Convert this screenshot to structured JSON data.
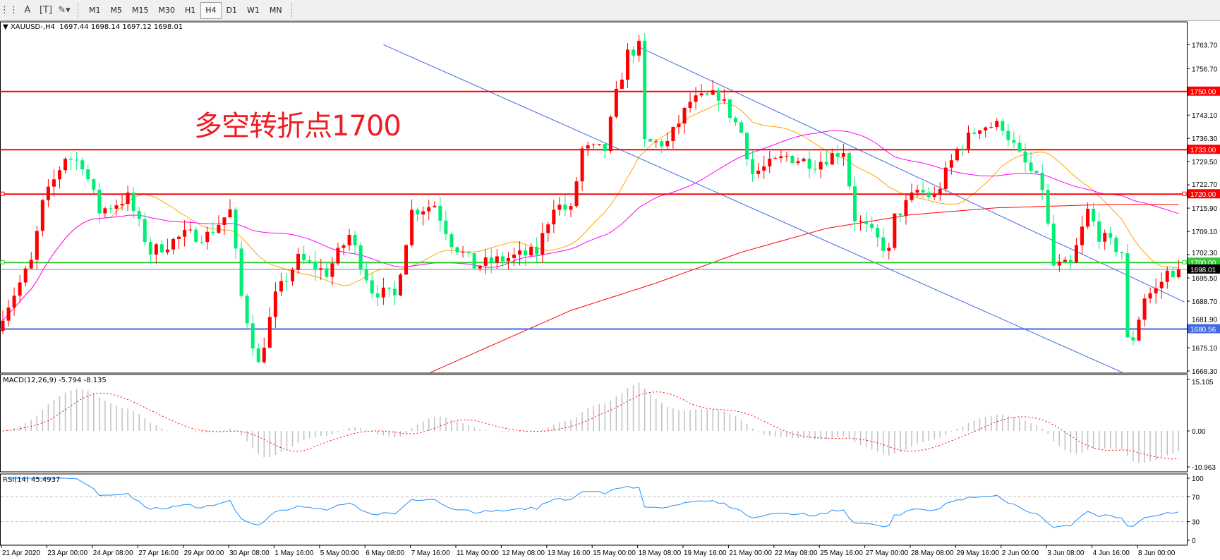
{
  "toolbar": {
    "icons": [
      "grid-fibo-icon",
      "text-a-icon",
      "text-label-icon",
      "arrows-icon"
    ],
    "timeframes": [
      "M1",
      "M5",
      "M15",
      "M30",
      "H1",
      "H4",
      "D1",
      "W1",
      "MN"
    ],
    "selected": "H4"
  },
  "chart_header": {
    "symbol": "XAUUSD-,H4",
    "ohlc": "1697.44 1698.14 1697.12 1698.01"
  },
  "annotation": "多空转折点1700",
  "chart_data": {
    "type": "candlestick",
    "bull_color": "#ff0000",
    "bear_color": "#00ee76",
    "price_range": [
      1668.3,
      1763.7
    ],
    "price_ticks": [
      "1763.70",
      "1756.70",
      "1743.10",
      "1736.30",
      "1729.50",
      "1722.70",
      "1715.90",
      "1709.10",
      "1702.30",
      "1695.50",
      "1688.70",
      "1681.90",
      "1675.10",
      "1668.30"
    ],
    "hlines": [
      {
        "value": 1750.0,
        "label": "1750.00",
        "color": "#ff0000"
      },
      {
        "value": 1733.0,
        "label": "1733.00",
        "color": "#ff0000"
      },
      {
        "value": 1720.0,
        "label": "1720.00",
        "color": "#ff0000"
      },
      {
        "value": 1700.0,
        "label": "1700.00",
        "color": "#32cd32"
      },
      {
        "value": 1680.56,
        "label": "1680.56",
        "color": "#4169e1"
      }
    ],
    "current_price": {
      "value": 1698.01,
      "label": "1698.01"
    },
    "trendlines": [
      {
        "from": [
          "bar",
          67,
          1763.7
        ],
        "to": [
          "bar",
          201,
          1665.0
        ],
        "color": "#4169e1"
      },
      {
        "from": [
          "bar",
          112,
          1763.0
        ],
        "to": [
          "bar",
          208,
          1688.5
        ],
        "color": "#4169e1"
      }
    ],
    "price_path": [
      [
        0,
        1685
      ],
      [
        5,
        1700
      ],
      [
        7,
        1717
      ],
      [
        11,
        1731
      ],
      [
        14,
        1729
      ],
      [
        17,
        1715
      ],
      [
        22,
        1719
      ],
      [
        26,
        1703
      ],
      [
        32,
        1708
      ],
      [
        36,
        1708
      ],
      [
        40,
        1715
      ],
      [
        42,
        1690
      ],
      [
        45,
        1670
      ],
      [
        48,
        1690
      ],
      [
        52,
        1701
      ],
      [
        57,
        1697
      ],
      [
        61,
        1708
      ],
      [
        65,
        1692
      ],
      [
        69,
        1690
      ],
      [
        72,
        1715
      ],
      [
        76,
        1717
      ],
      [
        79,
        1706
      ],
      [
        83,
        1699
      ],
      [
        88,
        1701
      ],
      [
        94,
        1703
      ],
      [
        97,
        1717
      ],
      [
        100,
        1715
      ],
      [
        102,
        1733
      ],
      [
        106,
        1733
      ],
      [
        108,
        1749
      ],
      [
        110,
        1761
      ],
      [
        112,
        1763
      ],
      [
        113,
        1735
      ],
      [
        117,
        1735
      ],
      [
        121,
        1747
      ],
      [
        126,
        1749
      ],
      [
        130,
        1738
      ],
      [
        132,
        1726
      ],
      [
        138,
        1731
      ],
      [
        143,
        1729
      ],
      [
        148,
        1733
      ],
      [
        150,
        1713
      ],
      [
        152,
        1710
      ],
      [
        156,
        1703
      ],
      [
        157,
        1713
      ],
      [
        161,
        1721
      ],
      [
        164,
        1719
      ],
      [
        168,
        1733
      ],
      [
        172,
        1740
      ],
      [
        176,
        1740
      ],
      [
        179,
        1731
      ],
      [
        183,
        1722
      ],
      [
        185,
        1699
      ],
      [
        188,
        1699
      ],
      [
        191,
        1715
      ],
      [
        193,
        1708
      ],
      [
        197,
        1703
      ],
      [
        198,
        1677
      ],
      [
        199,
        1678
      ],
      [
        201,
        1690
      ],
      [
        203,
        1692
      ],
      [
        205,
        1697
      ],
      [
        207,
        1698.01
      ]
    ],
    "ma_long_path": [
      [
        70,
        1664
      ],
      [
        85,
        1675
      ],
      [
        100,
        1686
      ],
      [
        115,
        1694
      ],
      [
        130,
        1703
      ],
      [
        145,
        1710
      ],
      [
        160,
        1714
      ],
      [
        175,
        1716
      ],
      [
        195,
        1717
      ],
      [
        207,
        1717
      ]
    ],
    "x_labels": [
      "21 Apr 2020",
      "23 Apr 00:00",
      "24 Apr 08:00",
      "27 Apr 16:00",
      "29 Apr 00:00",
      "30 Apr 08:00",
      "1 May 16:00",
      "5 May 00:00",
      "6 May 08:00",
      "7 May 16:00",
      "11 May 00:00",
      "12 May 08:00",
      "13 May 16:00",
      "15 May 00:00",
      "18 May 08:00",
      "19 May 16:00",
      "21 May 00:00",
      "22 May 08:00",
      "25 May 16:00",
      "27 May 00:00",
      "28 May 08:00",
      "29 May 16:00",
      "2 Jun 00:00",
      "3 Jun 08:00",
      "4 Jun 16:00",
      "8 Jun 00:00"
    ],
    "macd": {
      "label": "MACD(12,26,9) -5.794 -8.135",
      "range": [
        -10.963,
        15.105
      ],
      "ticks": [
        "15.105",
        "0.00",
        "-10.963"
      ],
      "histogram_color": "#c0c0c0",
      "signal_color": "#ff0000"
    },
    "rsi": {
      "label": "RSI(14) 45.4937",
      "range": [
        0,
        100
      ],
      "ticks": [
        "100",
        "70",
        "30",
        "0"
      ],
      "levels": [
        70,
        30
      ],
      "color": "#1e90ff"
    }
  }
}
